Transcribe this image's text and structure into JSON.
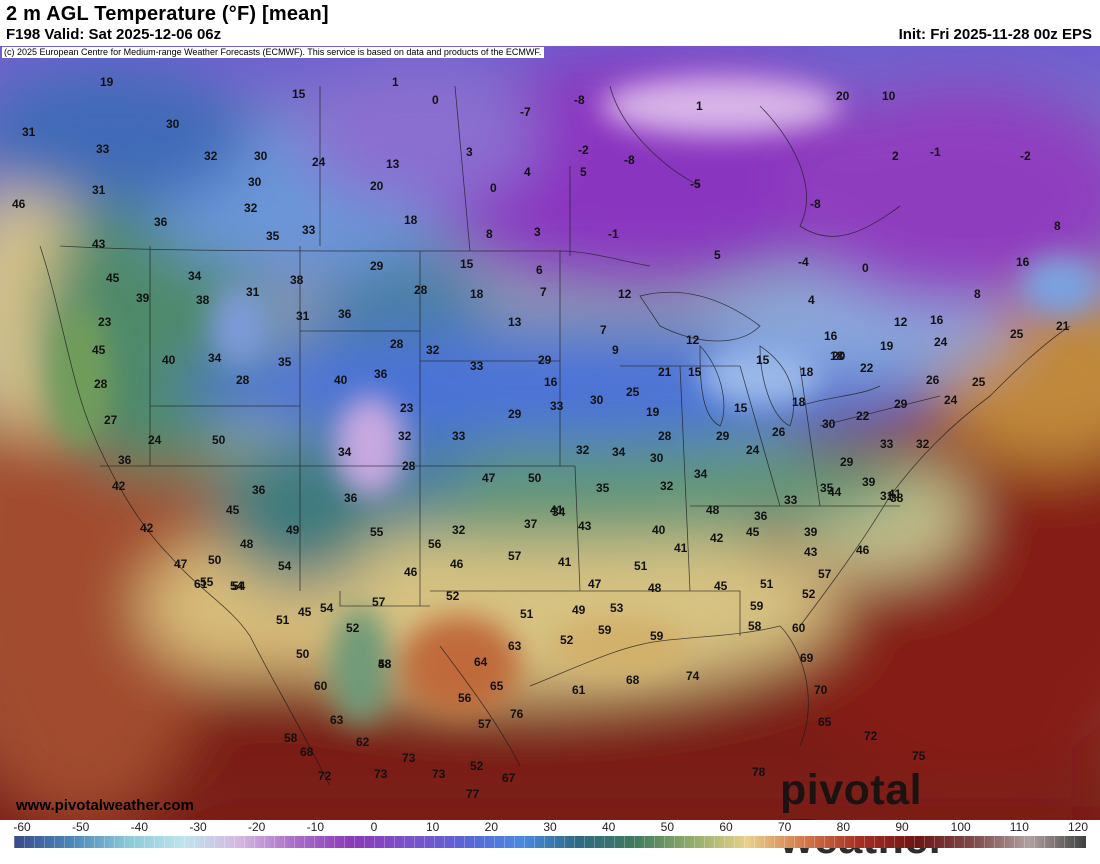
{
  "header": {
    "title": "2 m AGL Temperature (°F) [mean]",
    "valid": "F198 Valid: Sat 2025-12-06 06z",
    "init": "Init: Fri 2025-11-28 00z EPS"
  },
  "copyright": "(c) 2025 European Centre for Medium-range Weather Forecasts (ECMWF). This service is based on data and products of the ECMWF.",
  "footer": {
    "website": "www.pivotalweather.com",
    "brand": "pivotal weather"
  },
  "colorbar": {
    "ticks": [
      "-60",
      "-50",
      "-40",
      "-30",
      "-20",
      "-10",
      "0",
      "10",
      "20",
      "30",
      "40",
      "50",
      "60",
      "70",
      "80",
      "90",
      "100",
      "110",
      "120"
    ],
    "colors": [
      "#3a4a8a",
      "#4a86b8",
      "#88c8d8",
      "#bfe4ec",
      "#d4b6e0",
      "#a86cc8",
      "#8a3ab8",
      "#7a52c8",
      "#5a64d6",
      "#4a8ae0",
      "#2f6a84",
      "#3f7a5e",
      "#93ab6a",
      "#e8d08a",
      "#d4784a",
      "#a82e22",
      "#6e1414",
      "#7e4a4a",
      "#b0a0a0",
      "#404040"
    ]
  },
  "values": [
    "19",
    "15",
    "1",
    "0",
    "-8",
    "-7",
    "1",
    "20",
    "10",
    "31",
    "30",
    "32",
    "30",
    "24",
    "13",
    "3",
    "-2",
    "-8",
    "-5",
    "2",
    "-1",
    "-2",
    "33",
    "31",
    "30",
    "20",
    "4",
    "5",
    "0",
    "-8",
    "5",
    "8",
    "46",
    "36",
    "32",
    "35",
    "33",
    "18",
    "8",
    "3",
    "-1",
    "-4",
    "0",
    "16",
    "43",
    "45",
    "34",
    "31",
    "38",
    "29",
    "15",
    "6",
    "12",
    "4",
    "8",
    "12",
    "16",
    "39",
    "38",
    "31",
    "36",
    "28",
    "18",
    "7",
    "13",
    "7",
    "9",
    "12",
    "15",
    "16",
    "18",
    "19",
    "24",
    "25",
    "21",
    "23",
    "45",
    "40",
    "34",
    "35",
    "28",
    "32",
    "33",
    "29",
    "16",
    "21",
    "15",
    "18",
    "20",
    "22",
    "28",
    "28",
    "40",
    "36",
    "23",
    "29",
    "33",
    "30",
    "25",
    "19",
    "15",
    "18",
    "22",
    "29",
    "26",
    "24",
    "25",
    "27",
    "24",
    "50",
    "34",
    "32",
    "28",
    "33",
    "32",
    "34",
    "30",
    "28",
    "29",
    "24",
    "26",
    "30",
    "29",
    "33",
    "32",
    "36",
    "42",
    "47",
    "50",
    "36",
    "35",
    "32",
    "34",
    "33",
    "35",
    "39",
    "36",
    "48",
    "44",
    "31",
    "34",
    "36",
    "39",
    "38",
    "41",
    "42",
    "45",
    "48",
    "49",
    "55",
    "32",
    "37",
    "41",
    "43",
    "40",
    "41",
    "42",
    "45",
    "43",
    "46",
    "47",
    "50",
    "54",
    "61",
    "54",
    "56",
    "57",
    "41",
    "46",
    "46",
    "47",
    "45",
    "51",
    "52",
    "48",
    "57",
    "51",
    "51",
    "52",
    "58",
    "45",
    "52",
    "51",
    "49",
    "53",
    "54",
    "55",
    "57",
    "54",
    "50",
    "48",
    "63",
    "52",
    "59",
    "59",
    "58",
    "60",
    "59",
    "60",
    "56",
    "65",
    "64",
    "65",
    "63",
    "69",
    "70",
    "61",
    "68",
    "74",
    "73",
    "73",
    "52",
    "57",
    "58",
    "62",
    "67",
    "73",
    "72",
    "75",
    "72",
    "78",
    "76",
    "77",
    "68",
    "58",
    "74"
  ]
}
